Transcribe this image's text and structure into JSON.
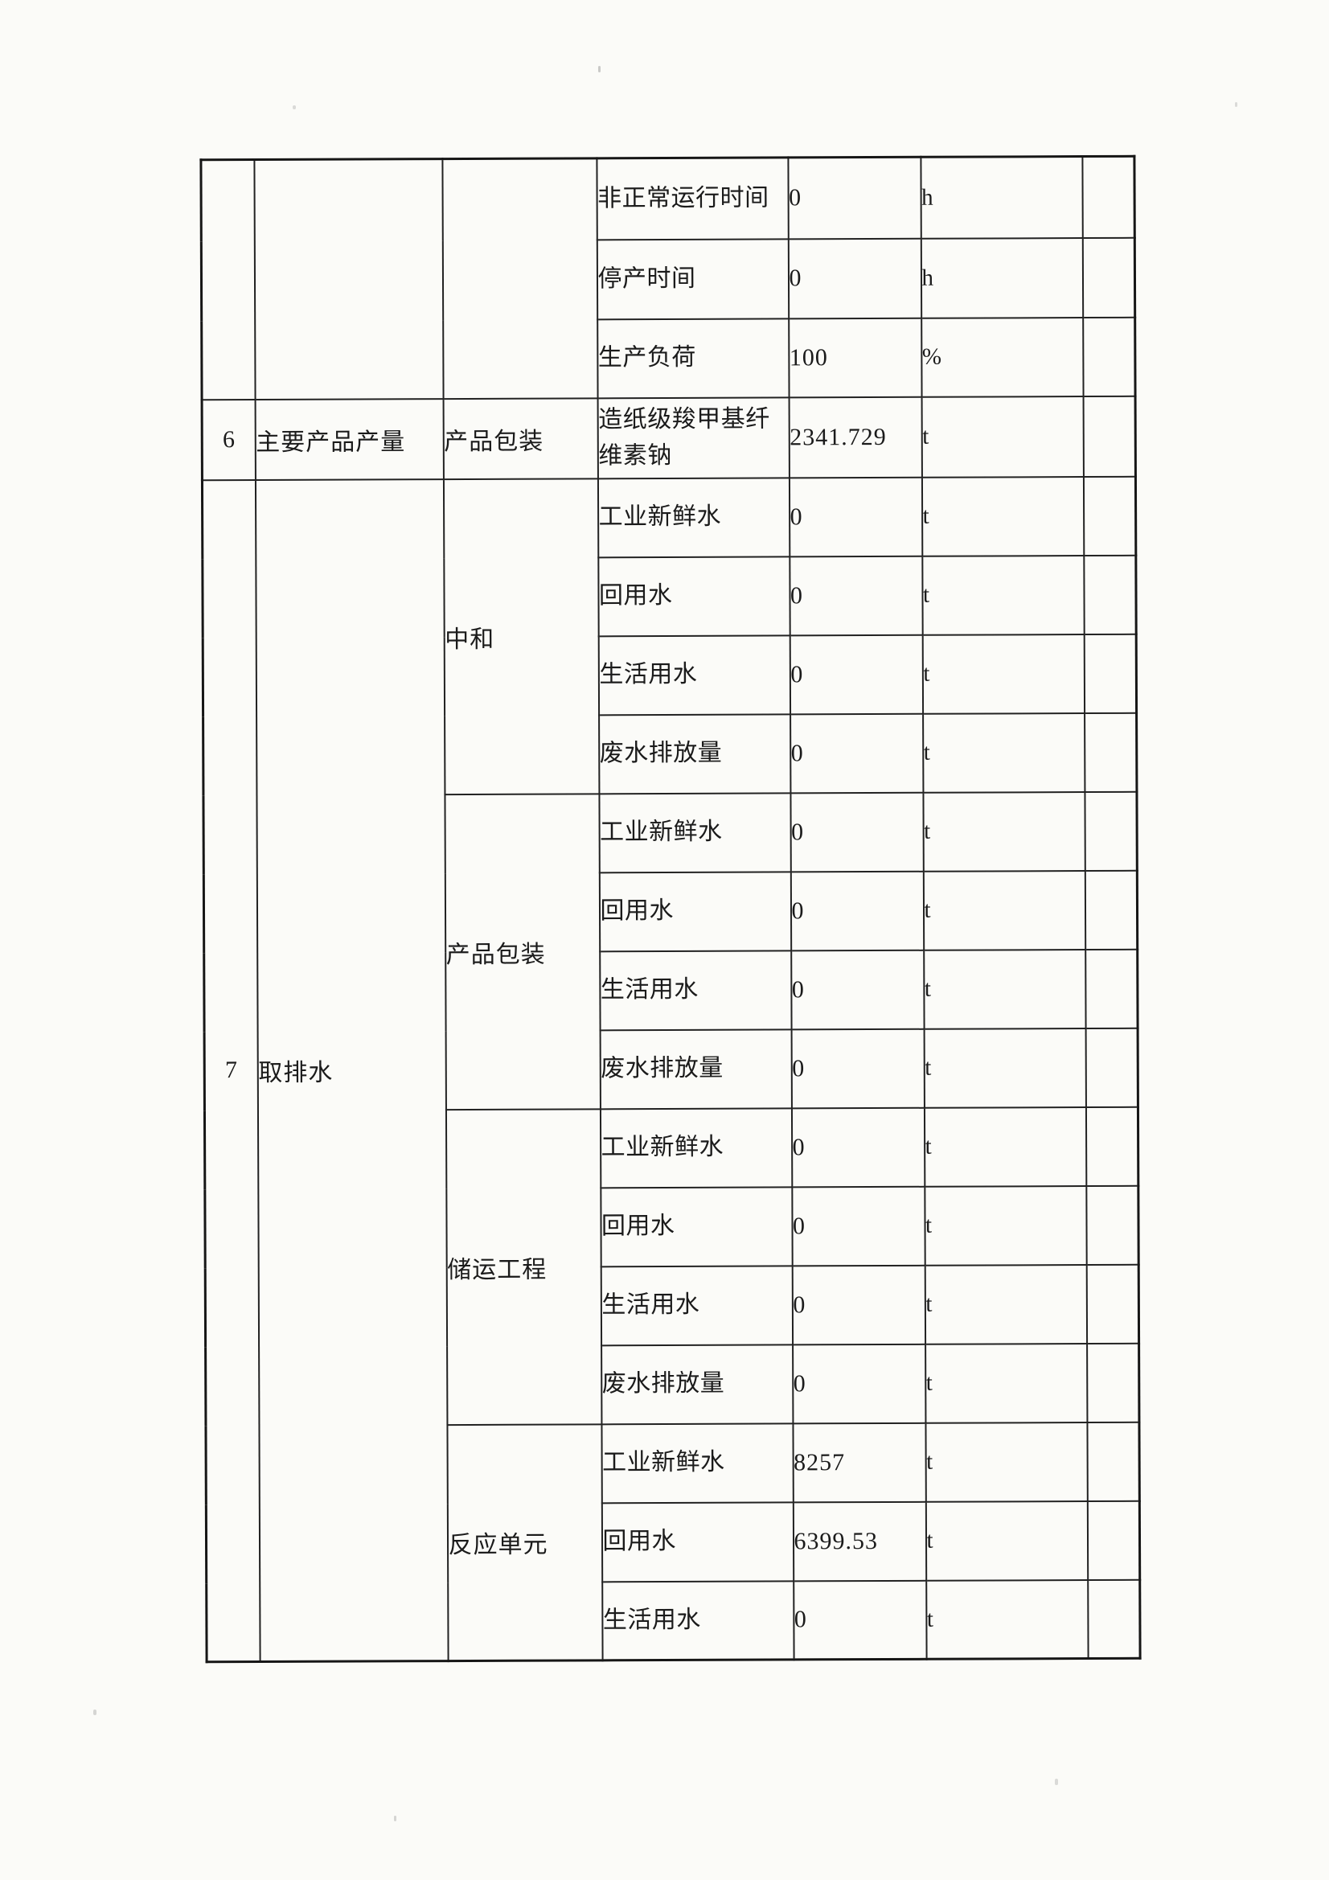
{
  "document": {
    "table": {
      "continuation": {
        "rows": [
          {
            "label": "非正常运行时间",
            "value": "0",
            "unit": "h"
          },
          {
            "label": "停产时间",
            "value": "0",
            "unit": "h"
          },
          {
            "label": "生产负荷",
            "value": "100",
            "unit": "%"
          }
        ]
      },
      "sections": [
        {
          "no": "6",
          "name": "主要产品产量",
          "groups": [
            {
              "name": "产品包装",
              "rows": [
                {
                  "label": "造纸级羧甲基纤维素钠",
                  "value": "2341.729",
                  "unit": "t"
                }
              ]
            }
          ]
        },
        {
          "no": "7",
          "name": "取排水",
          "groups": [
            {
              "name": "中和",
              "rows": [
                {
                  "label": "工业新鲜水",
                  "value": "0",
                  "unit": "t"
                },
                {
                  "label": "回用水",
                  "value": "0",
                  "unit": "t"
                },
                {
                  "label": "生活用水",
                  "value": "0",
                  "unit": "t"
                },
                {
                  "label": "废水排放量",
                  "value": "0",
                  "unit": "t"
                }
              ]
            },
            {
              "name": "产品包装",
              "rows": [
                {
                  "label": "工业新鲜水",
                  "value": "0",
                  "unit": "t"
                },
                {
                  "label": "回用水",
                  "value": "0",
                  "unit": "t"
                },
                {
                  "label": "生活用水",
                  "value": "0",
                  "unit": "t"
                },
                {
                  "label": "废水排放量",
                  "value": "0",
                  "unit": "t"
                }
              ]
            },
            {
              "name": "储运工程",
              "rows": [
                {
                  "label": "工业新鲜水",
                  "value": "0",
                  "unit": "t"
                },
                {
                  "label": "回用水",
                  "value": "0",
                  "unit": "t"
                },
                {
                  "label": "生活用水",
                  "value": "0",
                  "unit": "t"
                },
                {
                  "label": "废水排放量",
                  "value": "0",
                  "unit": "t"
                }
              ]
            },
            {
              "name": "反应单元",
              "rows": [
                {
                  "label": "工业新鲜水",
                  "value": "8257",
                  "unit": "t"
                },
                {
                  "label": "回用水",
                  "value": "6399.53",
                  "unit": "t"
                },
                {
                  "label": "生活用水",
                  "value": "0",
                  "unit": "t"
                }
              ]
            }
          ]
        }
      ]
    }
  }
}
